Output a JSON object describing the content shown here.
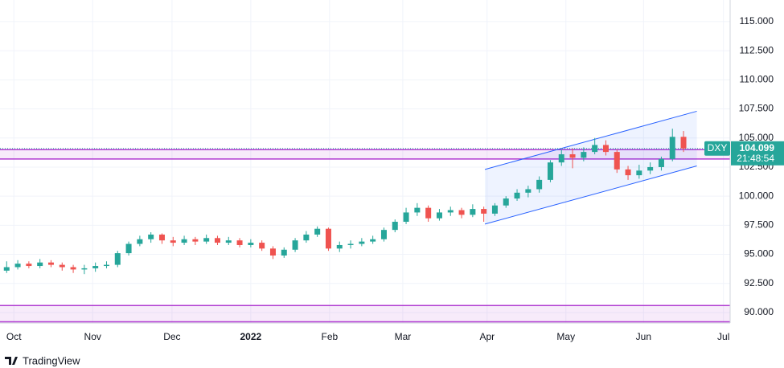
{
  "chart_data": {
    "type": "candlestick",
    "ticker": "DXY",
    "last_price": 104.099,
    "countdown": "21:48:54",
    "brand": "TradingView",
    "up_color": "#26a69a",
    "down_color": "#ef5350",
    "grid": true,
    "open": [
      93.6,
      93.9,
      94.2,
      94.0,
      94.3,
      94.1,
      93.9,
      93.7,
      93.8,
      94.0,
      94.1,
      95.1,
      95.9,
      96.3,
      96.7,
      96.2,
      96.0,
      96.3,
      96.1,
      96.4,
      96.0,
      96.2,
      95.8,
      96.0,
      95.5,
      94.9,
      95.4,
      96.2,
      96.7,
      97.2,
      95.5,
      95.8,
      95.9,
      96.1,
      96.3,
      97.1,
      97.8,
      98.6,
      99.0,
      98.1,
      98.6,
      98.8,
      98.4,
      98.9,
      98.5,
      99.2,
      99.8,
      100.3,
      100.6,
      101.4,
      102.9,
      103.6,
      103.3,
      103.8,
      104.4,
      103.8,
      102.3,
      101.8,
      102.2,
      102.5,
      103.2,
      105.1
    ],
    "high": [
      94.4,
      94.5,
      94.4,
      94.6,
      94.5,
      94.3,
      94.1,
      94.1,
      94.3,
      94.4,
      95.3,
      96.1,
      96.6,
      96.9,
      96.8,
      96.5,
      96.6,
      96.5,
      96.7,
      96.6,
      96.5,
      96.4,
      96.3,
      96.2,
      95.7,
      95.6,
      96.4,
      97.0,
      97.4,
      97.3,
      96.1,
      96.2,
      96.4,
      96.6,
      97.3,
      98.0,
      99.0,
      99.4,
      99.2,
      98.9,
      99.1,
      99.0,
      99.3,
      99.1,
      99.4,
      100.0,
      100.6,
      100.9,
      101.7,
      103.1,
      104.0,
      104.1,
      104.2,
      105.0,
      104.8,
      104.0,
      102.6,
      102.7,
      102.9,
      103.4,
      105.8,
      105.6
    ],
    "low": [
      93.4,
      93.7,
      93.8,
      93.8,
      93.9,
      93.6,
      93.4,
      93.3,
      93.5,
      93.8,
      93.9,
      94.9,
      95.7,
      96.0,
      95.9,
      95.7,
      95.8,
      95.8,
      95.9,
      95.8,
      95.8,
      95.6,
      95.6,
      95.3,
      94.6,
      94.7,
      95.2,
      96.0,
      96.5,
      95.3,
      95.2,
      95.5,
      95.7,
      95.9,
      96.1,
      96.9,
      97.6,
      98.3,
      97.8,
      97.9,
      98.3,
      98.1,
      98.2,
      97.8,
      98.3,
      99.0,
      99.6,
      99.9,
      100.3,
      101.2,
      102.6,
      102.4,
      103.0,
      103.6,
      103.5,
      102.0,
      101.4,
      101.5,
      101.9,
      102.2,
      103.0,
      103.8
    ],
    "close": [
      93.9,
      94.2,
      94.0,
      94.3,
      94.1,
      93.9,
      93.7,
      93.8,
      94.0,
      94.1,
      95.1,
      95.9,
      96.3,
      96.7,
      96.2,
      96.0,
      96.3,
      96.1,
      96.4,
      96.0,
      96.2,
      95.8,
      96.0,
      95.5,
      94.9,
      95.4,
      96.2,
      96.7,
      97.2,
      95.5,
      95.8,
      95.9,
      96.1,
      96.3,
      97.1,
      97.8,
      98.6,
      99.0,
      98.1,
      98.6,
      98.8,
      98.4,
      98.9,
      98.5,
      99.2,
      99.8,
      100.3,
      100.6,
      101.4,
      102.9,
      103.6,
      103.3,
      103.8,
      104.4,
      103.8,
      102.3,
      101.8,
      102.2,
      102.5,
      103.2,
      105.1,
      104.1
    ],
    "xlim": [
      -0.6,
      65.2
    ],
    "xticks": [
      {
        "value": 0.65,
        "label": "Oct"
      },
      {
        "value": 7.75,
        "label": "Nov"
      },
      {
        "value": 14.9,
        "label": "Dec"
      },
      {
        "value": 22.0,
        "label": "2022"
      },
      {
        "value": 29.1,
        "label": "Feb"
      },
      {
        "value": 35.7,
        "label": "Mar"
      },
      {
        "value": 43.3,
        "label": "Apr"
      },
      {
        "value": 50.4,
        "label": "May"
      },
      {
        "value": 57.4,
        "label": "Jun"
      },
      {
        "value": 64.6,
        "label": "Jul"
      }
    ],
    "ylim": [
      89.1,
      116.86
    ],
    "yticks": [
      {
        "value": 90,
        "label": "90.000"
      },
      {
        "value": 92.5,
        "label": "92.500"
      },
      {
        "value": 95,
        "label": "95.000"
      },
      {
        "value": 97.5,
        "label": "97.500"
      },
      {
        "value": 100,
        "label": "100.000"
      },
      {
        "value": 102.5,
        "label": "102.500"
      },
      {
        "value": 105,
        "label": "105.000"
      },
      {
        "value": 107.5,
        "label": "107.500"
      },
      {
        "value": 110,
        "label": "110.000"
      },
      {
        "value": 112.5,
        "label": "112.500"
      },
      {
        "value": 115,
        "label": "115.000"
      }
    ],
    "channel": {
      "x": [
        43.1,
        62.2
      ],
      "upper": [
        102.3,
        107.3
      ],
      "lower": [
        97.6,
        102.6
      ],
      "color": "#2962ff"
    },
    "levels": [
      104.0,
      103.2
    ],
    "level_color": "#b03bd1",
    "zone": [
      90.6,
      89.2
    ]
  }
}
